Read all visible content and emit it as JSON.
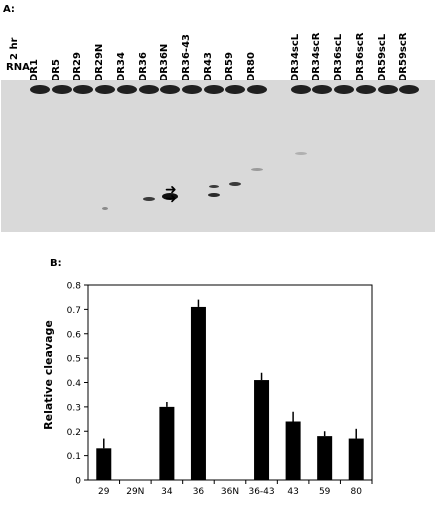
{
  "panel_a": {
    "label": "A:",
    "header_lines": [
      "2 hr",
      "RNA"
    ],
    "lanes": [
      "DR1",
      "DR5",
      "DR29",
      "DR29N",
      "DR34",
      "DR36",
      "DR36N",
      "DR36-43",
      "DR43",
      "DR59",
      "DR80",
      "DR34scL",
      "DR34scR",
      "DR36scL",
      "DR36scR",
      "DR59scL",
      "DR59scR"
    ]
  },
  "panel_b": {
    "label": "B:"
  },
  "chart_data": {
    "type": "bar",
    "title": "",
    "xlabel": "",
    "ylabel": "Relative cleavage",
    "categories": [
      "29",
      "29N",
      "34",
      "36",
      "36N",
      "36-43",
      "43",
      "59",
      "80"
    ],
    "values": [
      0.13,
      0,
      0.3,
      0.71,
      0,
      0.41,
      0.24,
      0.18,
      0.17
    ],
    "errors": [
      0.04,
      0,
      0.02,
      0.03,
      0,
      0.03,
      0.04,
      0.02,
      0.04
    ],
    "ylim": [
      0,
      0.8
    ],
    "yticks": [
      "0",
      "0.1",
      "0.2",
      "0.3",
      "0.4",
      "0.5",
      "0.6",
      "0.7",
      "0.8"
    ],
    "grid": false,
    "bar_color": "#000000"
  }
}
